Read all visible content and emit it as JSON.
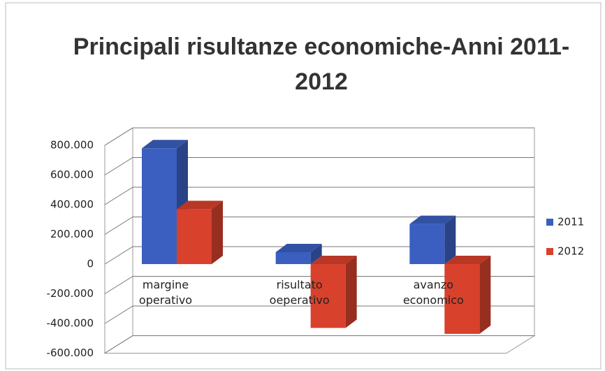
{
  "chart_data": {
    "type": "bar3d",
    "title": "Principali risultanze economiche-Anni 2011-2012",
    "categories": [
      "margine operativo",
      "risultato oeperativo",
      "avanzo economico"
    ],
    "series": [
      {
        "name": "2011",
        "color": "#3b5fc0",
        "values": [
          780000,
          80000,
          270000
        ]
      },
      {
        "name": "2012",
        "color": "#d8412c",
        "values": [
          370000,
          -430000,
          -470000
        ]
      }
    ],
    "ylim": [
      -600000,
      800000
    ],
    "yticks": [
      {
        "value": -600000,
        "label": "-600.000"
      },
      {
        "value": -400000,
        "label": "-400.000"
      },
      {
        "value": -200000,
        "label": "-200.000"
      },
      0,
      {
        "value": 200000,
        "label": "200.000"
      },
      {
        "value": 400000,
        "label": "400.000"
      },
      {
        "value": 600000,
        "label": "600.000"
      },
      {
        "value": 800000,
        "label": "800.000"
      }
    ],
    "grid": true,
    "legend": "right"
  }
}
